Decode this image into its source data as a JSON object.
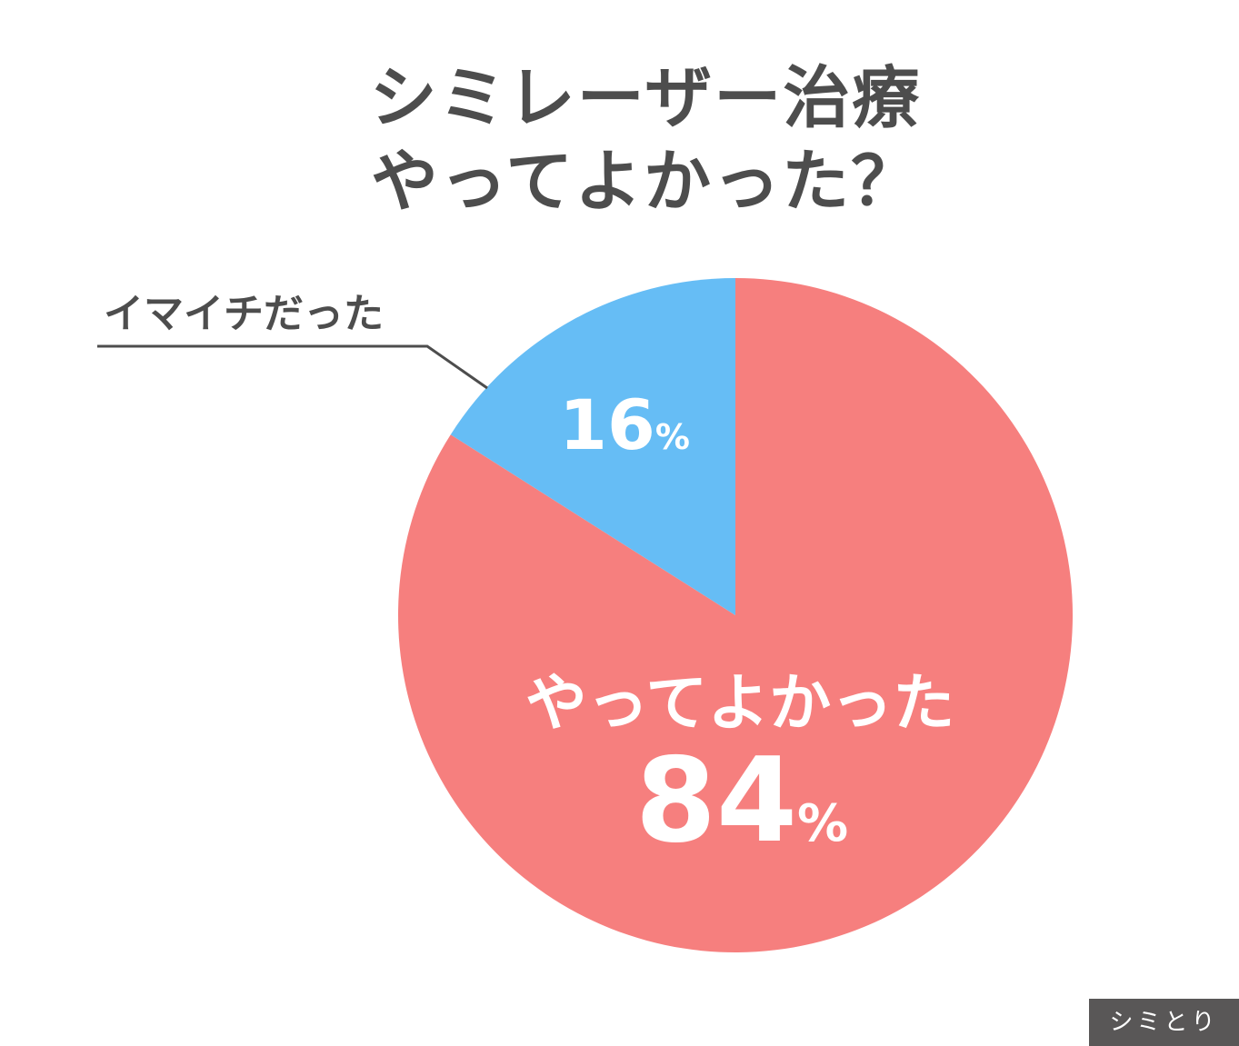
{
  "chart_data": {
    "type": "pie",
    "title_lines": [
      "シミレーザー治療",
      "やってよかった？"
    ],
    "start_angle": "12 o'clock",
    "direction": "clockwise",
    "slices": [
      {
        "label": "やってよかった",
        "value": 84,
        "display": "84",
        "unit": "%",
        "color": "#f67f7e"
      },
      {
        "label": "イマイチだった",
        "value": 16,
        "display": "16",
        "unit": "%",
        "color": "#66bdf5"
      }
    ]
  },
  "brand": "シミとり",
  "colors": {
    "title": "#4d4d4d",
    "callout_text": "#4d4d4d",
    "leader_line": "#4d4d4d",
    "slice_text": "#ffffff",
    "badge_bg": "#595757"
  }
}
